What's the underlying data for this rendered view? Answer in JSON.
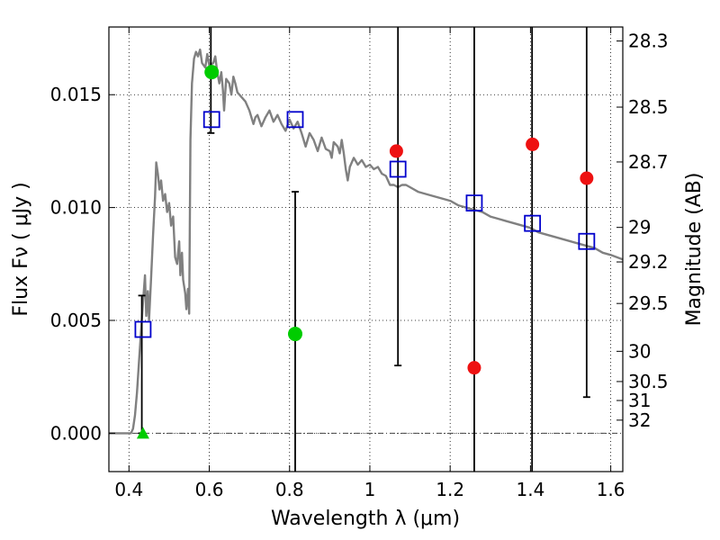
{
  "chart_data": {
    "type": "scatter",
    "xlabel": "Wavelength  λ (μm)",
    "ylabel": "Flux  Fν  ( μJy )",
    "y2label": "Magnitude (AB)",
    "xlim": [
      0.35,
      1.63
    ],
    "ylim": [
      -0.0017,
      0.018
    ],
    "xticks": [
      0.4,
      0.6,
      0.8,
      1.0,
      1.2,
      1.4,
      1.6
    ],
    "xtick_labels": [
      "0.4",
      "0.6",
      "0.8",
      "1",
      "1.2",
      "1.4",
      "1.6"
    ],
    "yticks": [
      0.0,
      0.005,
      0.01,
      0.015
    ],
    "ytick_labels": [
      "0.000",
      "0.005",
      "0.010",
      "0.015"
    ],
    "y2ticks": [
      {
        "label": "28.3",
        "flux": 0.01738
      },
      {
        "label": "28.5",
        "flux": 0.01445
      },
      {
        "label": "28.7",
        "flux": 0.01202
      },
      {
        "label": "29",
        "flux": 0.00912
      },
      {
        "label": "29.2",
        "flux": 0.00759
      },
      {
        "label": "29.5",
        "flux": 0.00575
      },
      {
        "label": "30",
        "flux": 0.00363
      },
      {
        "label": "30.5",
        "flux": 0.00229
      },
      {
        "label": "31",
        "flux": 0.00145
      },
      {
        "label": "32",
        "flux": 0.00058
      }
    ],
    "grid": true,
    "grid_style": "dotted",
    "series": [
      {
        "kind": "model_spectrum",
        "color": "#808080",
        "points": [
          [
            0.35,
            0.0
          ],
          [
            0.405,
            0.0
          ],
          [
            0.41,
            0.0002
          ],
          [
            0.415,
            0.0008
          ],
          [
            0.42,
            0.0018
          ],
          [
            0.425,
            0.0032
          ],
          [
            0.43,
            0.0045
          ],
          [
            0.435,
            0.0058
          ],
          [
            0.44,
            0.007
          ],
          [
            0.443,
            0.0052
          ],
          [
            0.447,
            0.0063
          ],
          [
            0.45,
            0.005
          ],
          [
            0.455,
            0.0068
          ],
          [
            0.46,
            0.0088
          ],
          [
            0.465,
            0.0105
          ],
          [
            0.468,
            0.012
          ],
          [
            0.472,
            0.0115
          ],
          [
            0.476,
            0.0108
          ],
          [
            0.48,
            0.0112
          ],
          [
            0.485,
            0.0103
          ],
          [
            0.49,
            0.0106
          ],
          [
            0.495,
            0.0098
          ],
          [
            0.5,
            0.0102
          ],
          [
            0.505,
            0.0092
          ],
          [
            0.51,
            0.0096
          ],
          [
            0.515,
            0.0078
          ],
          [
            0.52,
            0.0075
          ],
          [
            0.525,
            0.0085
          ],
          [
            0.528,
            0.007
          ],
          [
            0.532,
            0.008
          ],
          [
            0.535,
            0.0068
          ],
          [
            0.54,
            0.0062
          ],
          [
            0.543,
            0.0055
          ],
          [
            0.547,
            0.0064
          ],
          [
            0.55,
            0.0053
          ],
          [
            0.553,
            0.013
          ],
          [
            0.557,
            0.0155
          ],
          [
            0.562,
            0.0166
          ],
          [
            0.567,
            0.0169
          ],
          [
            0.572,
            0.0167
          ],
          [
            0.577,
            0.017
          ],
          [
            0.582,
            0.0164
          ],
          [
            0.59,
            0.0162
          ],
          [
            0.595,
            0.0168
          ],
          [
            0.6,
            0.0163
          ],
          [
            0.61,
            0.0164
          ],
          [
            0.615,
            0.0167
          ],
          [
            0.62,
            0.016
          ],
          [
            0.625,
            0.0155
          ],
          [
            0.63,
            0.016
          ],
          [
            0.634,
            0.0152
          ],
          [
            0.637,
            0.0143
          ],
          [
            0.642,
            0.0157
          ],
          [
            0.65,
            0.0155
          ],
          [
            0.655,
            0.015
          ],
          [
            0.66,
            0.0158
          ],
          [
            0.665,
            0.0155
          ],
          [
            0.67,
            0.0151
          ],
          [
            0.68,
            0.0149
          ],
          [
            0.69,
            0.0147
          ],
          [
            0.7,
            0.0143
          ],
          [
            0.71,
            0.0137
          ],
          [
            0.715,
            0.014
          ],
          [
            0.72,
            0.0141
          ],
          [
            0.73,
            0.0136
          ],
          [
            0.74,
            0.014
          ],
          [
            0.75,
            0.0143
          ],
          [
            0.76,
            0.0138
          ],
          [
            0.77,
            0.0141
          ],
          [
            0.78,
            0.0137
          ],
          [
            0.79,
            0.0134
          ],
          [
            0.8,
            0.0139
          ],
          [
            0.81,
            0.0135
          ],
          [
            0.82,
            0.0138
          ],
          [
            0.83,
            0.0133
          ],
          [
            0.84,
            0.0127
          ],
          [
            0.85,
            0.0133
          ],
          [
            0.86,
            0.013
          ],
          [
            0.87,
            0.0125
          ],
          [
            0.88,
            0.0131
          ],
          [
            0.89,
            0.0126
          ],
          [
            0.9,
            0.0125
          ],
          [
            0.905,
            0.0122
          ],
          [
            0.91,
            0.0129
          ],
          [
            0.92,
            0.0127
          ],
          [
            0.925,
            0.0124
          ],
          [
            0.93,
            0.013
          ],
          [
            0.935,
            0.0124
          ],
          [
            0.94,
            0.0117
          ],
          [
            0.945,
            0.0112
          ],
          [
            0.95,
            0.0118
          ],
          [
            0.96,
            0.0122
          ],
          [
            0.97,
            0.0119
          ],
          [
            0.98,
            0.0121
          ],
          [
            0.99,
            0.0118
          ],
          [
            1.0,
            0.0119
          ],
          [
            1.01,
            0.0117
          ],
          [
            1.02,
            0.0118
          ],
          [
            1.03,
            0.0115
          ],
          [
            1.04,
            0.0114
          ],
          [
            1.05,
            0.011
          ],
          [
            1.06,
            0.011
          ],
          [
            1.07,
            0.0109
          ],
          [
            1.08,
            0.011
          ],
          [
            1.09,
            0.011
          ],
          [
            1.1,
            0.0109
          ],
          [
            1.12,
            0.0107
          ],
          [
            1.14,
            0.0106
          ],
          [
            1.16,
            0.0105
          ],
          [
            1.18,
            0.0104
          ],
          [
            1.2,
            0.0103
          ],
          [
            1.22,
            0.0101
          ],
          [
            1.24,
            0.01
          ],
          [
            1.26,
            0.0099
          ],
          [
            1.28,
            0.0098
          ],
          [
            1.3,
            0.0096
          ],
          [
            1.32,
            0.0095
          ],
          [
            1.34,
            0.0094
          ],
          [
            1.36,
            0.0093
          ],
          [
            1.38,
            0.0092
          ],
          [
            1.4,
            0.0091
          ],
          [
            1.42,
            0.0089
          ],
          [
            1.44,
            0.0088
          ],
          [
            1.46,
            0.0087
          ],
          [
            1.48,
            0.0086
          ],
          [
            1.5,
            0.0085
          ],
          [
            1.52,
            0.0084
          ],
          [
            1.54,
            0.0083
          ],
          [
            1.56,
            0.0082
          ],
          [
            1.58,
            0.008
          ],
          [
            1.6,
            0.0079
          ],
          [
            1.63,
            0.0077
          ]
        ]
      },
      {
        "kind": "model_photometry",
        "marker": "open-square",
        "color": "#0000cc",
        "points": [
          {
            "x": 0.435,
            "y": 0.0046
          },
          {
            "x": 0.606,
            "y": 0.0139
          },
          {
            "x": 0.814,
            "y": 0.0139
          },
          {
            "x": 1.07,
            "y": 0.0117
          },
          {
            "x": 1.26,
            "y": 0.0102
          },
          {
            "x": 1.405,
            "y": 0.0093
          },
          {
            "x": 1.54,
            "y": 0.0085
          }
        ]
      },
      {
        "kind": "observed_detections",
        "marker": "filled-circle",
        "color": "#00cc00",
        "points": [
          {
            "x": 0.606,
            "y": 0.016
          },
          {
            "x": 0.814,
            "y": 0.0044
          }
        ]
      },
      {
        "kind": "observed_upper_points",
        "marker": "filled-circle",
        "color": "#ee1111",
        "points": [
          {
            "x": 1.066,
            "y": 0.0125
          },
          {
            "x": 1.26,
            "y": 0.0029
          },
          {
            "x": 1.405,
            "y": 0.0128
          },
          {
            "x": 1.54,
            "y": 0.0113
          }
        ]
      },
      {
        "kind": "observed_nondetection",
        "marker": "filled-triangle",
        "color": "#00cc00",
        "points": [
          {
            "x": 0.435,
            "y": 0.0
          }
        ]
      },
      {
        "kind": "error_bars",
        "color": "#000000",
        "bars": [
          {
            "x": 0.432,
            "lo": 0.0,
            "hi": 0.0061
          },
          {
            "x": 0.604,
            "lo": 0.0133,
            "hi": 0.0185
          },
          {
            "x": 0.814,
            "lo": -0.0017,
            "hi": 0.0107
          },
          {
            "x": 1.07,
            "lo": 0.003,
            "hi": 0.0185
          },
          {
            "x": 1.26,
            "lo": -0.0017,
            "hi": 0.0185
          },
          {
            "x": 1.404,
            "lo": -0.0017,
            "hi": 0.0185
          },
          {
            "x": 1.54,
            "lo": 0.0016,
            "hi": 0.0185
          }
        ]
      }
    ],
    "zero_line": {
      "y": 0.0,
      "style": "dash-dot",
      "color": "#444444"
    }
  }
}
